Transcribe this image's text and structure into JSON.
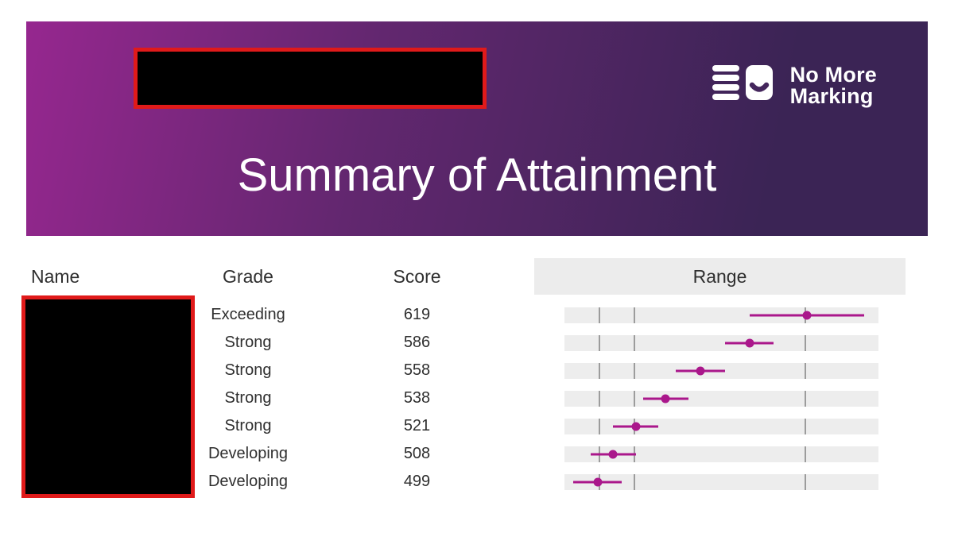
{
  "header": {
    "title": "Summary of Attainment",
    "logo": {
      "line1": "No More",
      "line2": "Marking"
    }
  },
  "columns": {
    "name": "Name",
    "grade": "Grade",
    "score": "Score",
    "range": "Range"
  },
  "rows": [
    {
      "grade": "Exceeding",
      "score": "619",
      "range_low": 586,
      "range_high": 652
    },
    {
      "grade": "Strong",
      "score": "586",
      "range_low": 572,
      "range_high": 600
    },
    {
      "grade": "Strong",
      "score": "558",
      "range_low": 544,
      "range_high": 572
    },
    {
      "grade": "Strong",
      "score": "538",
      "range_low": 525,
      "range_high": 551
    },
    {
      "grade": "Strong",
      "score": "521",
      "range_low": 508,
      "range_high": 534
    },
    {
      "grade": "Developing",
      "score": "508",
      "range_low": 495,
      "range_high": 521
    },
    {
      "grade": "Developing",
      "score": "499",
      "range_low": 485,
      "range_high": 513
    }
  ],
  "range_axis": {
    "min": 480,
    "max": 660,
    "gridlines": [
      500,
      520,
      618
    ]
  },
  "colors": {
    "banner_gradient_start": "#96278f",
    "banner_gradient_mid": "#62276f",
    "banner_gradient_end": "#3b2455",
    "logo_smile": "#44265c",
    "accent": "#aa178b",
    "redaction_fill": "#000000",
    "redaction_border": "#e01a1a",
    "range_track_bg": "#ededed",
    "range_header_bg": "#ececec",
    "gridline": "#9c9c9c",
    "text": "#2f2f2f"
  },
  "chart_data": {
    "type": "scatter",
    "title": "Range",
    "orientation": "horizontal dot plot with error bars, one per table row",
    "points": [
      619,
      586,
      558,
      538,
      521,
      508,
      499
    ],
    "error_low": [
      586,
      572,
      544,
      525,
      508,
      495,
      485
    ],
    "error_high": [
      652,
      600,
      572,
      551,
      534,
      521,
      513
    ],
    "xlim": [
      480,
      660
    ],
    "gridlines": [
      500,
      520,
      618
    ],
    "grid": true,
    "legend": "none"
  }
}
